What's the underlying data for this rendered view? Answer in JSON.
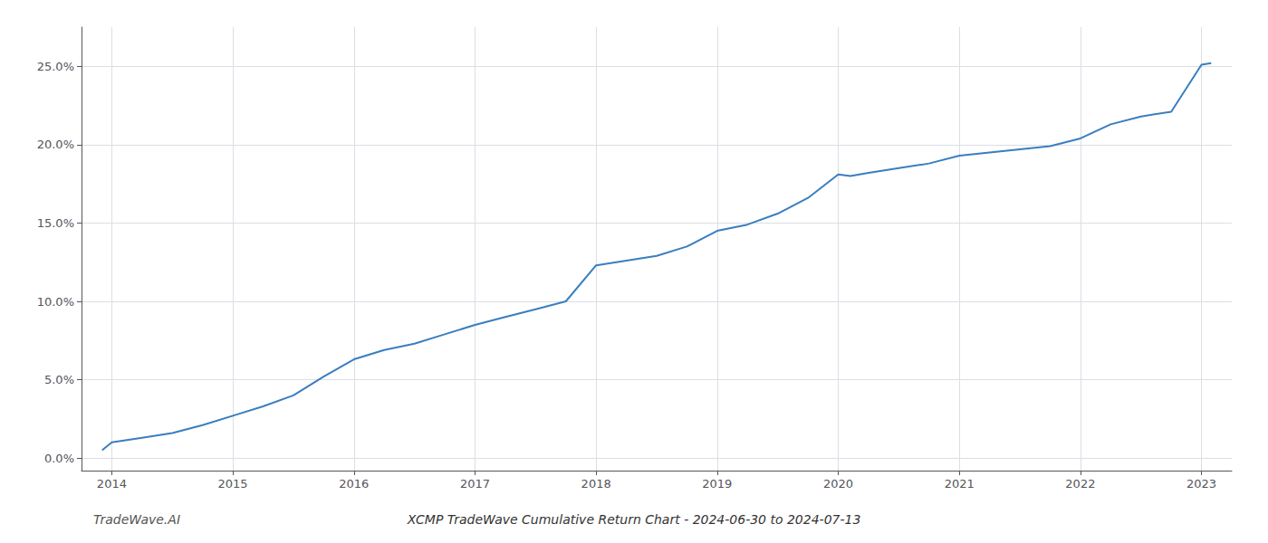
{
  "chart_data": {
    "type": "line",
    "title": "XCMP TradeWave Cumulative Return Chart - 2024-06-30 to 2024-07-13",
    "annotations": [
      "TradeWave.AI"
    ],
    "x": [
      2013.92,
      2014.0,
      2014.25,
      2014.5,
      2014.75,
      2015.0,
      2015.25,
      2015.5,
      2015.75,
      2016.0,
      2016.25,
      2016.5,
      2016.75,
      2017.0,
      2017.25,
      2017.5,
      2017.75,
      2018.0,
      2018.25,
      2018.5,
      2018.75,
      2019.0,
      2019.25,
      2019.5,
      2019.75,
      2020.0,
      2020.1,
      2020.25,
      2020.5,
      2020.75,
      2021.0,
      2021.25,
      2021.5,
      2021.75,
      2022.0,
      2022.25,
      2022.5,
      2022.75,
      2023.0,
      2023.08
    ],
    "values": [
      0.005,
      0.01,
      0.013,
      0.016,
      0.021,
      0.027,
      0.033,
      0.04,
      0.052,
      0.063,
      0.069,
      0.073,
      0.079,
      0.085,
      0.09,
      0.095,
      0.1,
      0.123,
      0.126,
      0.129,
      0.135,
      0.145,
      0.149,
      0.156,
      0.166,
      0.181,
      0.18,
      0.182,
      0.185,
      0.188,
      0.193,
      0.195,
      0.197,
      0.199,
      0.204,
      0.213,
      0.218,
      0.221,
      0.251,
      0.252
    ],
    "color": "#3a7ebf",
    "xlim": [
      2013.75,
      2023.25
    ],
    "ylim": [
      -0.008,
      0.275
    ],
    "xticks": [
      2014,
      2015,
      2016,
      2017,
      2018,
      2019,
      2020,
      2021,
      2022,
      2023
    ],
    "yticks": [
      {
        "value": 0.0,
        "label": "0.0%"
      },
      {
        "value": 0.05,
        "label": "5.0%"
      },
      {
        "value": 0.1,
        "label": "10.0%"
      },
      {
        "value": 0.15,
        "label": "15.0%"
      },
      {
        "value": 0.2,
        "label": "20.0%"
      },
      {
        "value": 0.25,
        "label": "25.0%"
      }
    ],
    "grid": true
  }
}
